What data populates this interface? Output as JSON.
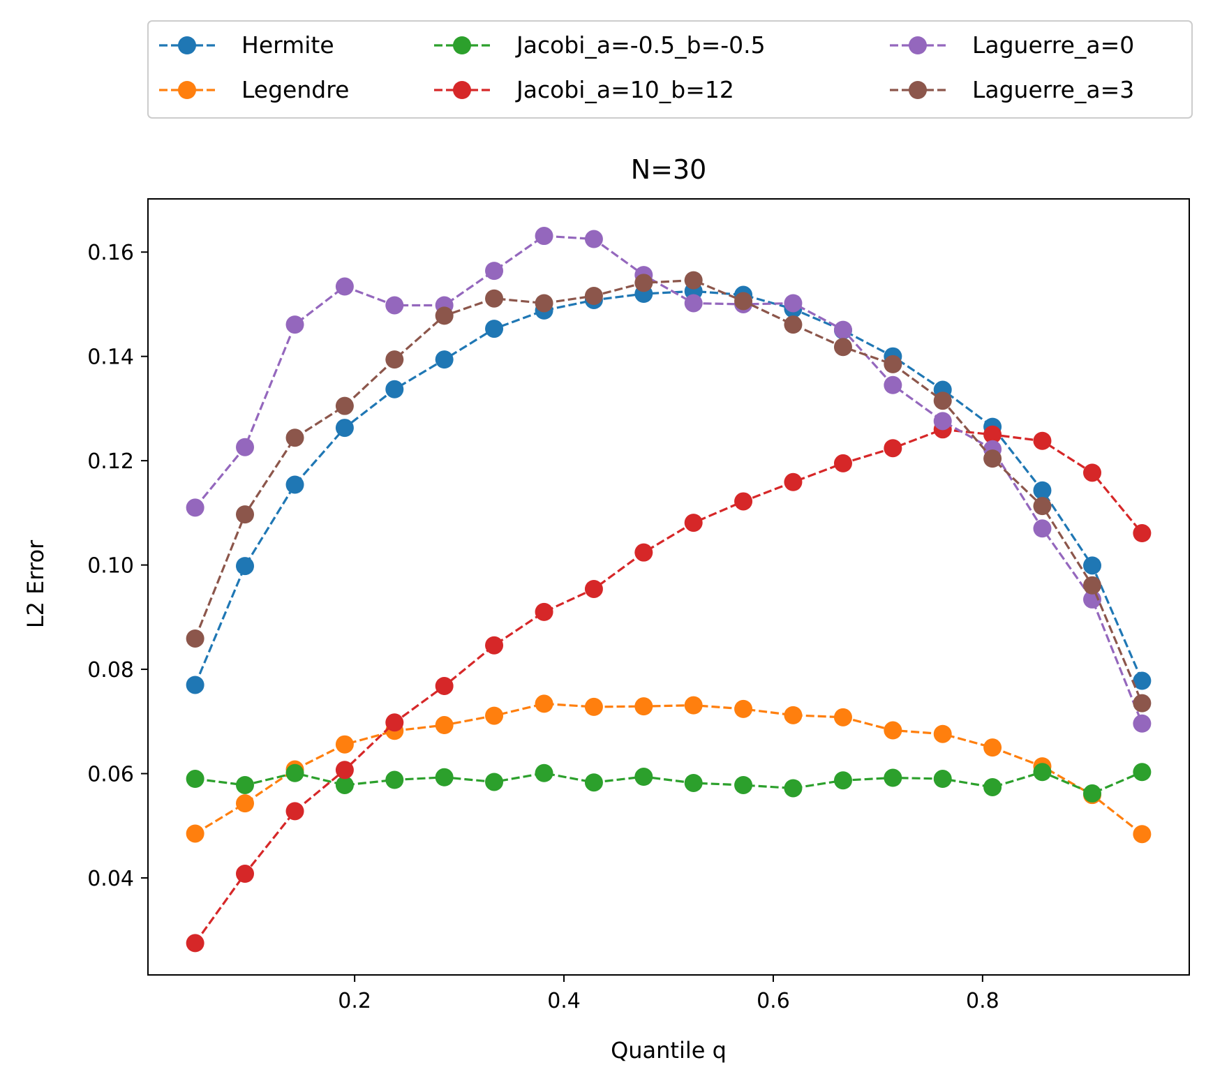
{
  "chart_data": {
    "type": "line",
    "title": "N=30",
    "xlabel": "Quantile q",
    "ylabel": "L2 Error",
    "xlim": [
      0.0025,
      0.9975
    ],
    "ylim": [
      0.0214,
      0.1702
    ],
    "xticks": [
      0.2,
      0.4,
      0.6,
      0.8
    ],
    "yticks": [
      0.04,
      0.06,
      0.08,
      0.1,
      0.12,
      0.14,
      0.16
    ],
    "xtick_labels": [
      "0.2",
      "0.4",
      "0.6",
      "0.8"
    ],
    "ytick_labels": [
      "0.04",
      "0.06",
      "0.08",
      "0.10",
      "0.12",
      "0.14",
      "0.16"
    ],
    "grid": false,
    "legend_position": "top, outside plot, 3 columns",
    "x": [
      0.0476,
      0.0952,
      0.1429,
      0.1905,
      0.2381,
      0.2857,
      0.3333,
      0.381,
      0.4286,
      0.4762,
      0.5238,
      0.5714,
      0.619,
      0.6667,
      0.7143,
      0.7619,
      0.8095,
      0.8571,
      0.9048,
      0.9524
    ],
    "series": [
      {
        "name": "Hermite",
        "color": "#1f77b4",
        "values": [
          0.077,
          0.0998,
          0.1154,
          0.1263,
          0.1337,
          0.1394,
          0.1453,
          0.1488,
          0.1508,
          0.152,
          0.1525,
          0.1518,
          0.1491,
          0.145,
          0.14,
          0.1336,
          0.1265,
          0.1143,
          0.0999,
          0.0778
        ]
      },
      {
        "name": "Legendre",
        "color": "#ff7f0e",
        "values": [
          0.0485,
          0.0543,
          0.0608,
          0.0656,
          0.0682,
          0.0693,
          0.0711,
          0.0734,
          0.0728,
          0.0729,
          0.0731,
          0.0724,
          0.0712,
          0.0708,
          0.0683,
          0.0676,
          0.065,
          0.0614,
          0.0559,
          0.0484
        ]
      },
      {
        "name": "Jacobi_a=-0.5_b=-0.5",
        "color": "#2ca02c",
        "values": [
          0.059,
          0.0578,
          0.0601,
          0.0578,
          0.0588,
          0.0593,
          0.0584,
          0.0601,
          0.0583,
          0.0594,
          0.0582,
          0.0578,
          0.0572,
          0.0587,
          0.0592,
          0.059,
          0.0574,
          0.0603,
          0.0562,
          0.0603
        ]
      },
      {
        "name": "Jacobi_a=10_b=12",
        "color": "#d62728",
        "values": [
          0.0275,
          0.0408,
          0.0528,
          0.0607,
          0.0698,
          0.0768,
          0.0846,
          0.091,
          0.0954,
          0.1024,
          0.1081,
          0.1122,
          0.1159,
          0.1195,
          0.1224,
          0.126,
          0.125,
          0.1238,
          0.1177,
          0.1061
        ]
      },
      {
        "name": "Laguerre_a=0",
        "color": "#9467bd",
        "values": [
          0.111,
          0.1226,
          0.1461,
          0.1534,
          0.1498,
          0.1498,
          0.1564,
          0.1631,
          0.1625,
          0.1556,
          0.1502,
          0.15,
          0.1502,
          0.1451,
          0.1345,
          0.1276,
          0.1222,
          0.107,
          0.0934,
          0.0696
        ]
      },
      {
        "name": "Laguerre_a=3",
        "color": "#8c564b",
        "values": [
          0.0859,
          0.1097,
          0.1244,
          0.1305,
          0.1394,
          0.1478,
          0.1511,
          0.1502,
          0.1516,
          0.1541,
          0.1546,
          0.1506,
          0.1461,
          0.1418,
          0.1385,
          0.1315,
          0.1204,
          0.1113,
          0.0961,
          0.0735
        ]
      }
    ]
  }
}
